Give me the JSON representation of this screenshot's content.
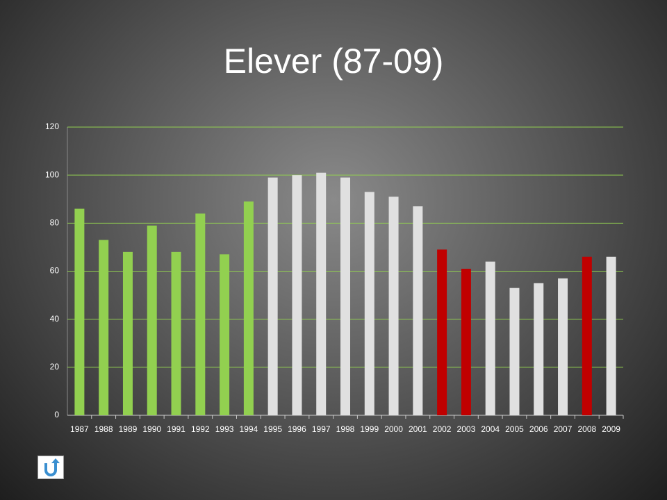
{
  "chart_data": {
    "type": "bar",
    "title": "Elever (87-09)",
    "categories": [
      "1987",
      "1988",
      "1989",
      "1990",
      "1991",
      "1992",
      "1993",
      "1994",
      "1995",
      "1996",
      "1997",
      "1998",
      "1999",
      "2000",
      "2001",
      "2002",
      "2003",
      "2004",
      "2005",
      "2006",
      "2007",
      "2008",
      "2009"
    ],
    "values": [
      86,
      73,
      68,
      79,
      68,
      84,
      67,
      89,
      99,
      100,
      101,
      99,
      93,
      91,
      87,
      69,
      61,
      64,
      53,
      55,
      57,
      66,
      66
    ],
    "colors": [
      "#92d050",
      "#92d050",
      "#92d050",
      "#92d050",
      "#92d050",
      "#92d050",
      "#92d050",
      "#92d050",
      "#e0e0e0",
      "#e0e0e0",
      "#e0e0e0",
      "#e0e0e0",
      "#e0e0e0",
      "#e0e0e0",
      "#e0e0e0",
      "#c00000",
      "#c00000",
      "#e0e0e0",
      "#e0e0e0",
      "#e0e0e0",
      "#e0e0e0",
      "#c00000",
      "#e0e0e0"
    ],
    "ylim": [
      0,
      120
    ],
    "yticks": [
      0,
      20,
      40,
      60,
      80,
      100,
      120
    ],
    "grid": true,
    "grid_color": "#92d050"
  }
}
